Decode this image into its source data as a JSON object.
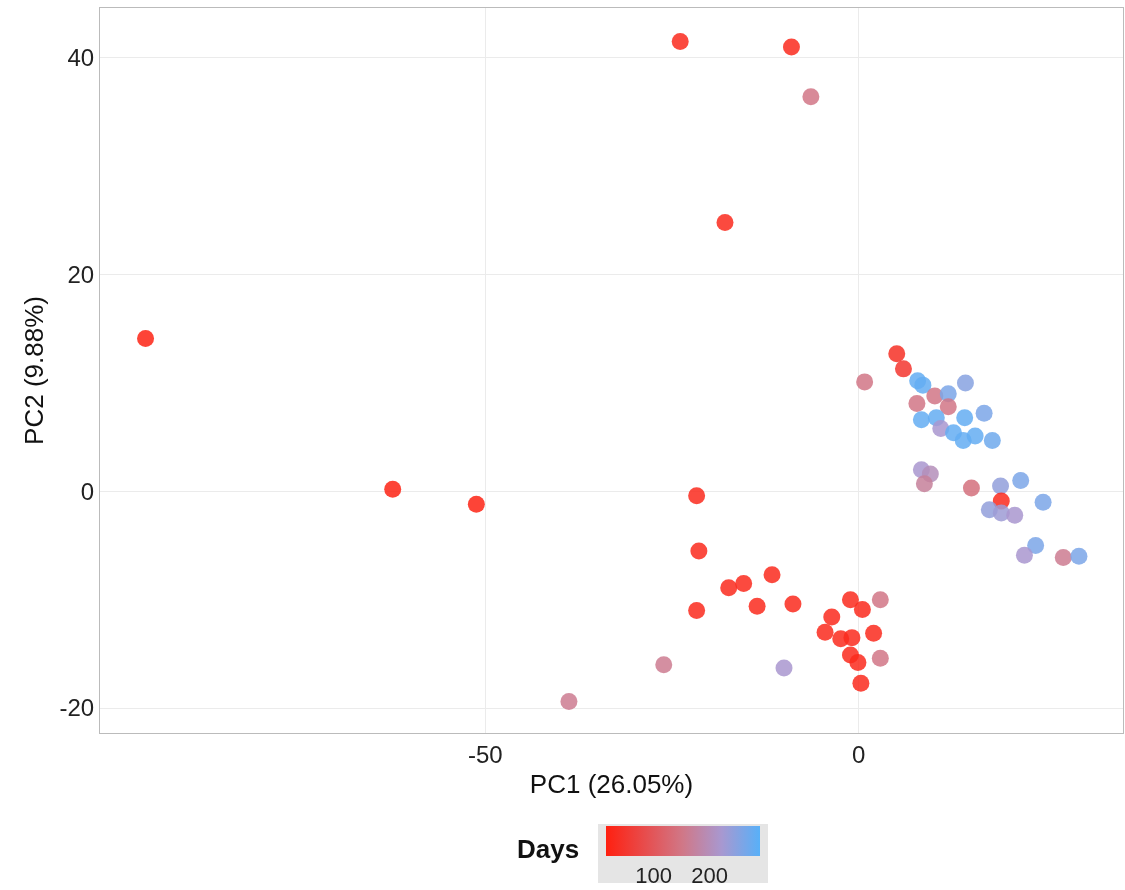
{
  "chart_data": {
    "type": "scatter",
    "xlabel": "PC1 (26.05%)",
    "ylabel": "PC2 (9.88%)",
    "clabel": "Days",
    "xlim": [
      -101.6,
      35.4
    ],
    "ylim": [
      -22.3,
      44.6
    ],
    "xticks": [
      -50,
      0
    ],
    "yticks": [
      -20,
      0,
      20,
      40
    ],
    "clim": [
      15,
      290
    ],
    "cticks": [
      100,
      200
    ],
    "grid": true,
    "x": [
      -95.5,
      -62.4,
      -51.2,
      -23.9,
      -9.0,
      -6.4,
      -17.9,
      -21.7,
      -21.4,
      -21.7,
      -17.4,
      -15.4,
      -11.6,
      -13.6,
      -8.8,
      -26.1,
      -10.0,
      -1.1,
      0.5,
      2.9,
      -3.6,
      -4.5,
      -2.4,
      -0.9,
      2.0,
      -1.1,
      -0.1,
      2.9,
      0.3,
      -38.8,
      0.8,
      5.1,
      6.0,
      7.9,
      8.6,
      7.8,
      10.2,
      12.0,
      14.3,
      12.0,
      8.4,
      10.4,
      11.0,
      12.7,
      14.2,
      16.8,
      14.0,
      15.6,
      17.9,
      8.4,
      9.6,
      8.8,
      15.1,
      19.0,
      21.7,
      19.1,
      17.5,
      19.1,
      20.9,
      24.7,
      23.7,
      22.2,
      27.4,
      29.5
    ],
    "values": [
      14.1,
      0.2,
      -1.2,
      41.5,
      41.0,
      36.4,
      24.8,
      -0.4,
      -5.5,
      -11.0,
      -8.9,
      -8.5,
      -7.7,
      -10.6,
      -10.4,
      -16.0,
      -16.3,
      -10.0,
      -10.9,
      -10.0,
      -11.6,
      -13.0,
      -13.6,
      -13.5,
      -13.1,
      -15.1,
      -15.8,
      -15.4,
      -17.7,
      -19.4,
      10.1,
      12.7,
      11.3,
      10.2,
      9.8,
      8.1,
      8.8,
      9.0,
      10.0,
      7.8,
      6.6,
      6.8,
      5.8,
      5.4,
      6.8,
      7.2,
      4.7,
      5.1,
      4.7,
      2.0,
      1.6,
      0.7,
      0.3,
      0.5,
      1.0,
      -0.9,
      -1.7,
      -2.0,
      -2.2,
      -1.0,
      -5.0,
      -5.9,
      -6.1,
      -6.0
    ],
    "cvalues": [
      20,
      20,
      20,
      30,
      30,
      150,
      30,
      30,
      30,
      30,
      30,
      30,
      30,
      30,
      30,
      160,
      220,
      30,
      30,
      150,
      30,
      30,
      30,
      30,
      30,
      30,
      30,
      150,
      30,
      160,
      150,
      40,
      50,
      280,
      280,
      150,
      150,
      260,
      250,
      150,
      280,
      280,
      220,
      280,
      280,
      260,
      280,
      280,
      270,
      220,
      200,
      170,
      140,
      240,
      260,
      30,
      240,
      230,
      220,
      260,
      260,
      220,
      160,
      260
    ]
  }
}
